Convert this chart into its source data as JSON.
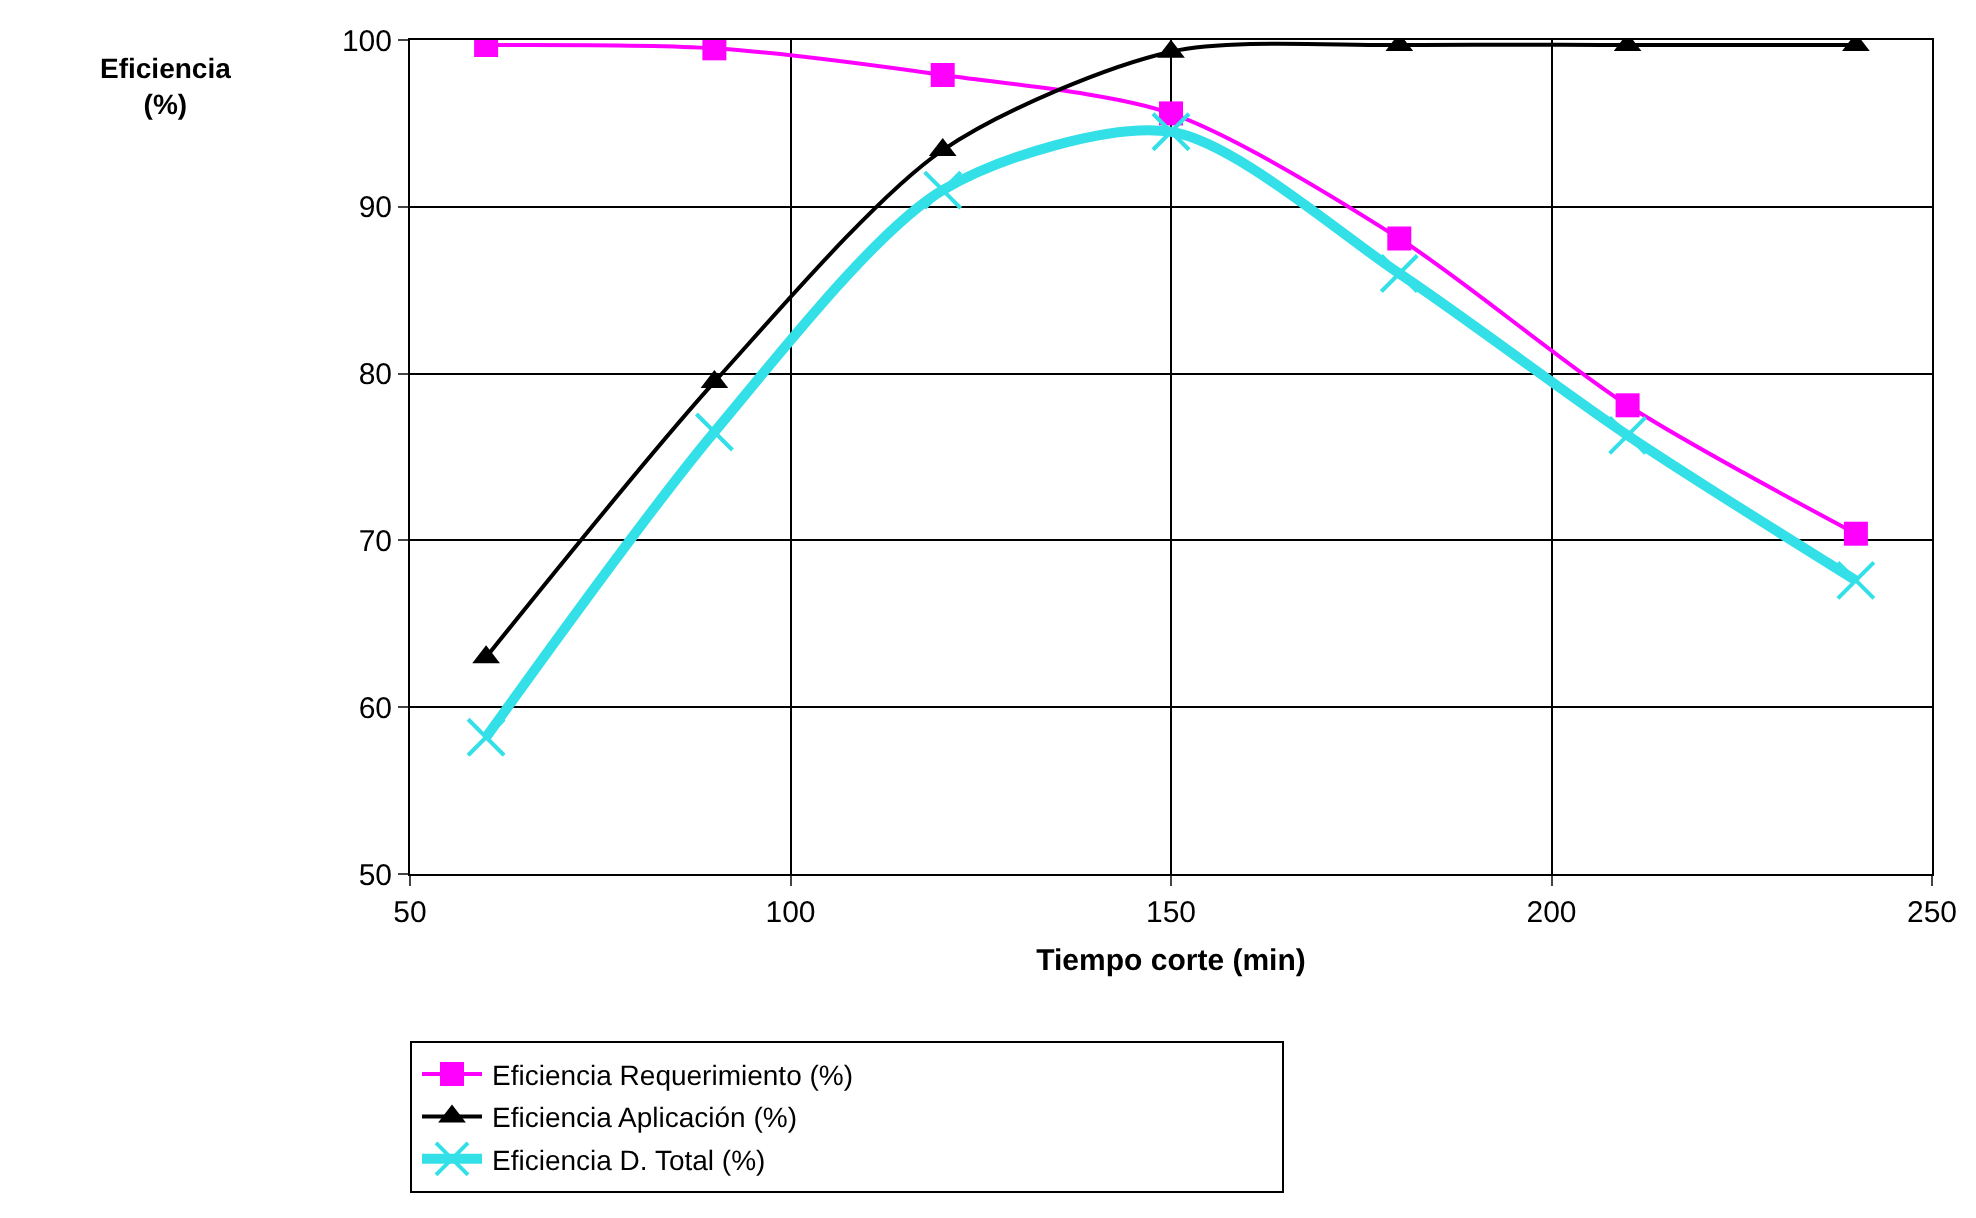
{
  "chart_data": {
    "type": "line",
    "xlabel": "Tiempo corte (min)",
    "ylabel": "Eficiencia\n(%)",
    "x": [
      60,
      90,
      120,
      150,
      180,
      210,
      240
    ],
    "series": [
      {
        "name": "Eficiencia Requerimiento (%)",
        "color": "#ff00ff",
        "marker": "square",
        "values": [
          99.7,
          99.5,
          97.9,
          95.6,
          88.1,
          78.1,
          70.4
        ]
      },
      {
        "name": "Eficiencia Aplicación (%)",
        "color": "#000000",
        "marker": "triangle",
        "values": [
          63.0,
          79.5,
          93.4,
          99.3,
          99.7,
          99.7,
          99.7
        ]
      },
      {
        "name": "Eficiencia D. Total (%)",
        "color": "#33e0e8",
        "marker": "cross",
        "values": [
          58.2,
          76.5,
          91.0,
          94.5,
          86.0,
          76.3,
          67.6
        ]
      }
    ],
    "xlim": [
      50,
      250
    ],
    "xticks": [
      50,
      100,
      150,
      200,
      250
    ],
    "ylim": [
      50,
      100
    ],
    "yticks": [
      50,
      60,
      70,
      80,
      90,
      100
    ],
    "grid": true,
    "legend": "bottom",
    "line_style": "solid"
  }
}
